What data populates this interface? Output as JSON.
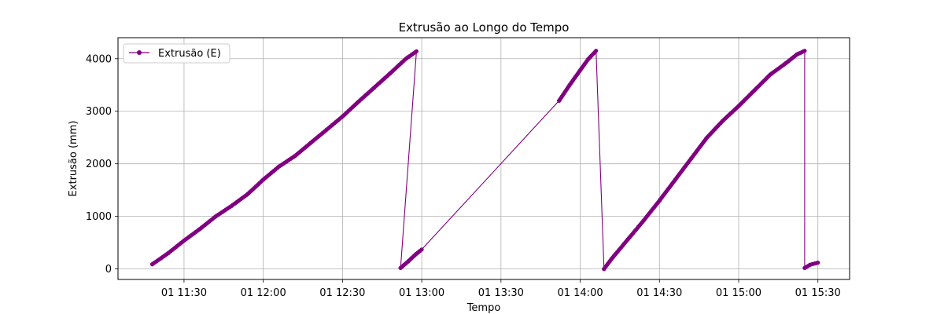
{
  "chart_data": {
    "type": "line",
    "title": "Extrusão ao Longo do Tempo",
    "xlabel": "Tempo",
    "ylabel": "Extrusão (mm)",
    "x_tick_labels": [
      "01 11:30",
      "01 12:00",
      "01 12:30",
      "01 13:00",
      "01 13:30",
      "01 14:00",
      "01 14:30",
      "01 15:00",
      "01 15:30"
    ],
    "x_tick_values": [
      "11:30",
      "12:00",
      "12:30",
      "13:00",
      "13:30",
      "14:00",
      "14:30",
      "15:00",
      "15:30"
    ],
    "xlim": [
      "11:05",
      "15:42"
    ],
    "ylim": [
      -200,
      4400
    ],
    "y_ticks": [
      0,
      1000,
      2000,
      3000,
      4000
    ],
    "grid": true,
    "legend_position": "top-left",
    "colors": {
      "series": "#800080"
    },
    "series": [
      {
        "name": "Extrusão (E)",
        "marker": "circle",
        "points": [
          [
            "11:18",
            90
          ],
          [
            "11:24",
            300
          ],
          [
            "11:30",
            540
          ],
          [
            "11:36",
            760
          ],
          [
            "11:42",
            1000
          ],
          [
            "11:48",
            1200
          ],
          [
            "11:54",
            1420
          ],
          [
            "12:00",
            1700
          ],
          [
            "12:06",
            1950
          ],
          [
            "12:12",
            2150
          ],
          [
            "12:18",
            2400
          ],
          [
            "12:24",
            2650
          ],
          [
            "12:30",
            2900
          ],
          [
            "12:36",
            3180
          ],
          [
            "12:42",
            3450
          ],
          [
            "12:48",
            3720
          ],
          [
            "12:54",
            4000
          ],
          [
            "12:58",
            4140
          ],
          [
            "12:52",
            20
          ],
          [
            "12:55",
            150
          ],
          [
            "12:58",
            290
          ],
          [
            "13:00",
            370
          ],
          [
            "13:52",
            3200
          ],
          [
            "13:56",
            3500
          ],
          [
            "14:00",
            3780
          ],
          [
            "14:03",
            3990
          ],
          [
            "14:06",
            4150
          ],
          [
            "14:09",
            0
          ],
          [
            "14:12",
            200
          ],
          [
            "14:18",
            560
          ],
          [
            "14:24",
            920
          ],
          [
            "14:30",
            1300
          ],
          [
            "14:36",
            1700
          ],
          [
            "14:42",
            2100
          ],
          [
            "14:48",
            2500
          ],
          [
            "14:54",
            2820
          ],
          [
            "15:00",
            3100
          ],
          [
            "15:06",
            3400
          ],
          [
            "15:12",
            3700
          ],
          [
            "15:18",
            3920
          ],
          [
            "15:22",
            4080
          ],
          [
            "15:25",
            4150
          ],
          [
            "15:25",
            20
          ],
          [
            "15:27",
            80
          ],
          [
            "15:30",
            120
          ]
        ]
      }
    ]
  }
}
